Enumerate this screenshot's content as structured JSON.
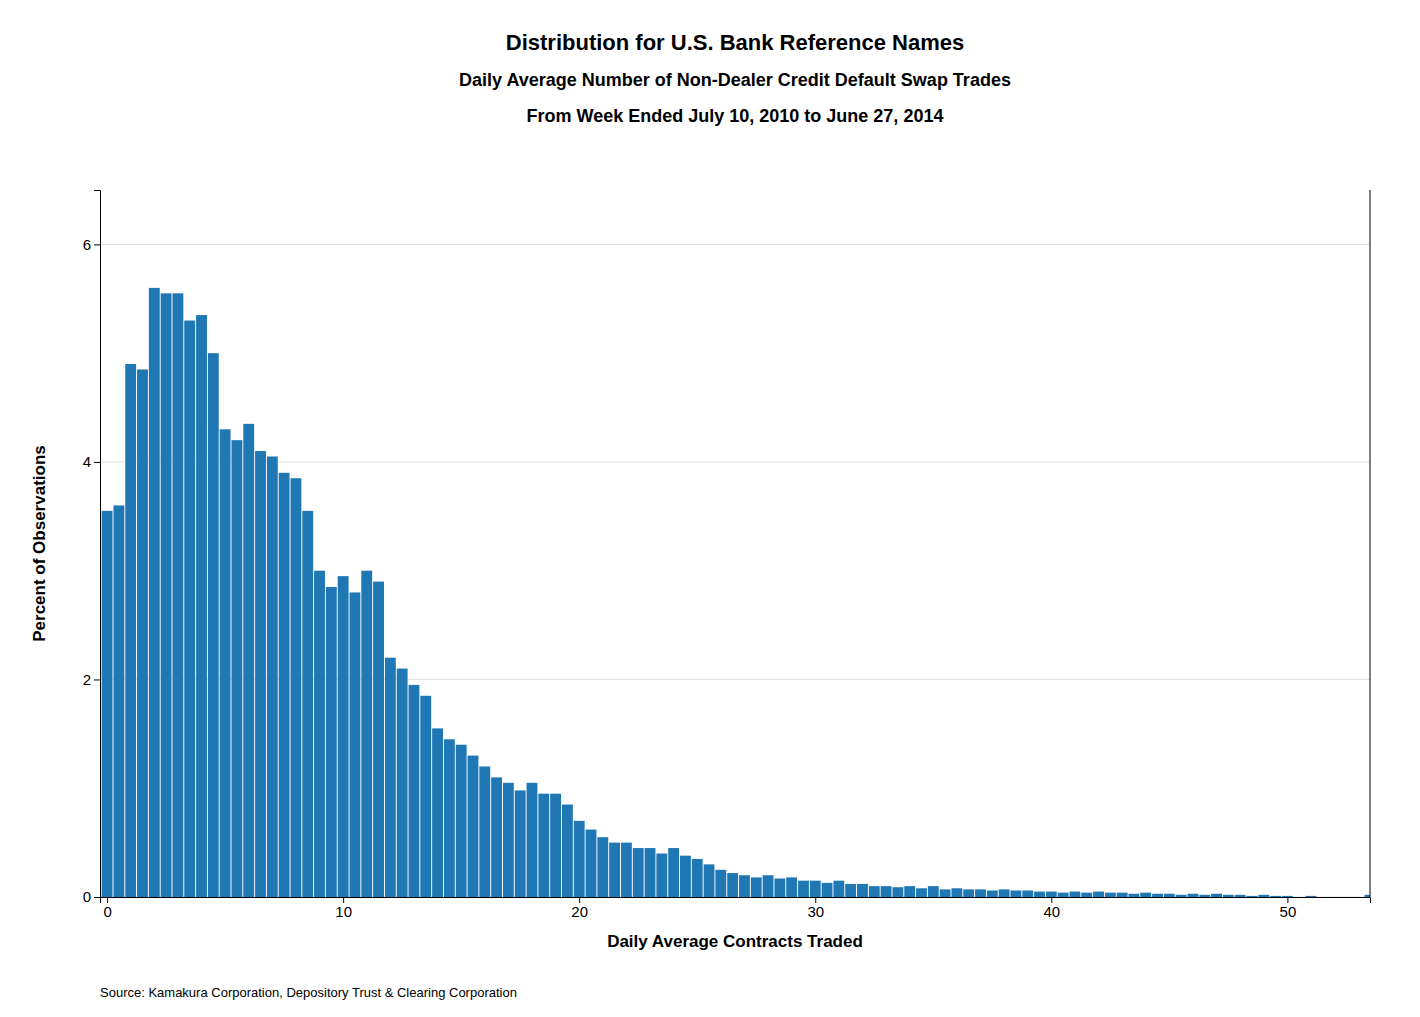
{
  "chart_data": {
    "type": "bar",
    "title": [
      "Distribution for U.S. Bank Reference Names",
      "Daily Average Number of Non-Dealer Credit Default Swap Trades",
      "From Week Ended July 10, 2010 to June 27, 2014"
    ],
    "x_label": "Daily Average Contracts Traded",
    "y_label": "Percent of Observations",
    "annotations": [
      "Source: Kamakura Corporation, Depository Trust & Clearing Corporation"
    ],
    "x": [
      0,
      0.5,
      1,
      1.5,
      2,
      2.5,
      3,
      3.5,
      4,
      4.5,
      5,
      5.5,
      6,
      6.5,
      7,
      7.5,
      8,
      8.5,
      9,
      9.5,
      10,
      10.5,
      11,
      11.5,
      12,
      12.5,
      13,
      13.5,
      14,
      14.5,
      15,
      15.5,
      16,
      16.5,
      17,
      17.5,
      18,
      18.5,
      19,
      19.5,
      20,
      20.5,
      21,
      21.5,
      22,
      22.5,
      23,
      23.5,
      24,
      24.5,
      25,
      25.5,
      26,
      26.5,
      27,
      27.5,
      28,
      28.5,
      29,
      29.5,
      30,
      30.5,
      31,
      31.5,
      32,
      32.5,
      33,
      33.5,
      34,
      34.5,
      35,
      35.5,
      36,
      36.5,
      37,
      37.5,
      38,
      38.5,
      39,
      39.5,
      40,
      40.5,
      41,
      41.5,
      42,
      42.5,
      43,
      43.5,
      44,
      44.5,
      45,
      45.5,
      46,
      46.5,
      47,
      47.5,
      48,
      48.5,
      49,
      49.5,
      50,
      50.5,
      51,
      51.5,
      52,
      52.5,
      53,
      53.5
    ],
    "values": [
      3.55,
      3.6,
      4.9,
      4.85,
      5.6,
      5.55,
      5.55,
      5.3,
      5.35,
      5.0,
      4.3,
      4.2,
      4.35,
      4.1,
      4.05,
      3.9,
      3.85,
      3.55,
      3.0,
      2.85,
      2.95,
      2.8,
      3.0,
      2.9,
      2.2,
      2.1,
      1.95,
      1.85,
      1.55,
      1.45,
      1.4,
      1.3,
      1.2,
      1.1,
      1.05,
      0.98,
      1.05,
      0.95,
      0.95,
      0.85,
      0.7,
      0.62,
      0.55,
      0.5,
      0.5,
      0.45,
      0.45,
      0.4,
      0.45,
      0.38,
      0.35,
      0.3,
      0.25,
      0.22,
      0.2,
      0.18,
      0.2,
      0.17,
      0.18,
      0.15,
      0.15,
      0.13,
      0.15,
      0.12,
      0.12,
      0.1,
      0.1,
      0.09,
      0.1,
      0.08,
      0.1,
      0.07,
      0.08,
      0.07,
      0.07,
      0.06,
      0.07,
      0.06,
      0.06,
      0.05,
      0.05,
      0.04,
      0.05,
      0.04,
      0.05,
      0.04,
      0.04,
      0.03,
      0.04,
      0.03,
      0.03,
      0.02,
      0.03,
      0.02,
      0.03,
      0.02,
      0.02,
      0.01,
      0.02,
      0.01,
      0.01,
      0.0,
      0.01,
      0.0,
      0.0,
      0.0,
      0.0,
      0.02
    ],
    "xlim": [
      -0.3,
      53.5
    ],
    "ylim": [
      0,
      6.5
    ],
    "xticks": [
      0,
      10,
      20,
      30,
      40,
      50
    ],
    "yticks": [
      0,
      2,
      4,
      6
    ],
    "grid": true
  }
}
